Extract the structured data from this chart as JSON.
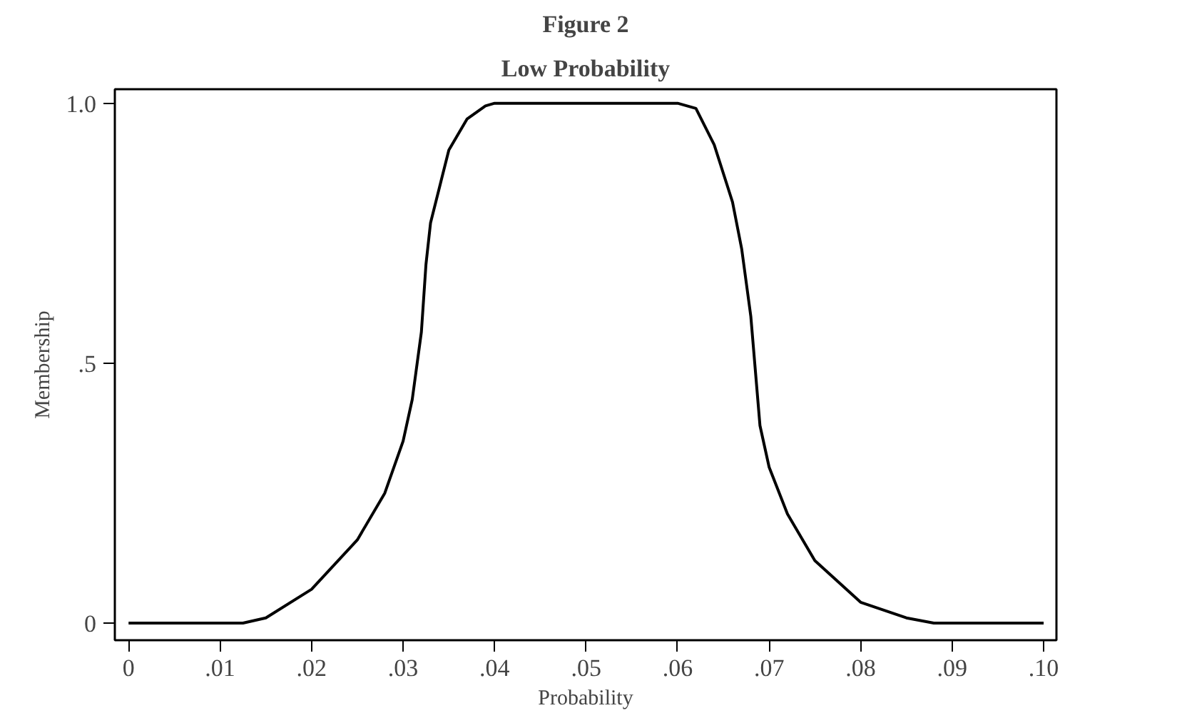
{
  "chart_data": {
    "type": "line",
    "title": "Figure 2",
    "subtitle": "Low Probability",
    "xlabel": "Probability",
    "ylabel": "Membership",
    "x": [
      0,
      0.0125,
      0.015,
      0.02,
      0.025,
      0.028,
      0.03,
      0.031,
      0.032,
      0.0325,
      0.033,
      0.034,
      0.035,
      0.037,
      0.039,
      0.04,
      0.05,
      0.06,
      0.062,
      0.064,
      0.066,
      0.067,
      0.068,
      0.0685,
      0.069,
      0.07,
      0.072,
      0.075,
      0.08,
      0.085,
      0.088,
      0.1
    ],
    "series": [
      {
        "color": "#000000",
        "values": [
          0,
          0,
          0.01,
          0.065,
          0.16,
          0.25,
          0.35,
          0.43,
          0.56,
          0.69,
          0.77,
          0.84,
          0.91,
          0.97,
          0.995,
          1,
          1,
          1,
          0.99,
          0.92,
          0.81,
          0.72,
          0.59,
          0.485,
          0.38,
          0.3,
          0.21,
          0.12,
          0.04,
          0.01,
          0,
          0
        ]
      }
    ],
    "xlim": [
      -0.0015,
      0.1014
    ],
    "ylim": [
      -0.033,
      1.027
    ],
    "xticks": [
      0,
      {
        "value": 0.01,
        "label": ".01"
      },
      {
        "value": 0.02,
        "label": ".02"
      },
      {
        "value": 0.03,
        "label": ".03"
      },
      {
        "value": 0.04,
        "label": ".04"
      },
      {
        "value": 0.05,
        "label": ".05"
      },
      {
        "value": 0.06,
        "label": ".06"
      },
      {
        "value": 0.07,
        "label": ".07"
      },
      {
        "value": 0.08,
        "label": ".08"
      },
      {
        "value": 0.09,
        "label": ".09"
      },
      {
        "value": 0.1,
        "label": ".10"
      }
    ],
    "yticks": [
      0,
      {
        "value": 0.5,
        "label": ".5"
      },
      {
        "value": 1,
        "label": "1.0"
      }
    ],
    "grid": false
  }
}
